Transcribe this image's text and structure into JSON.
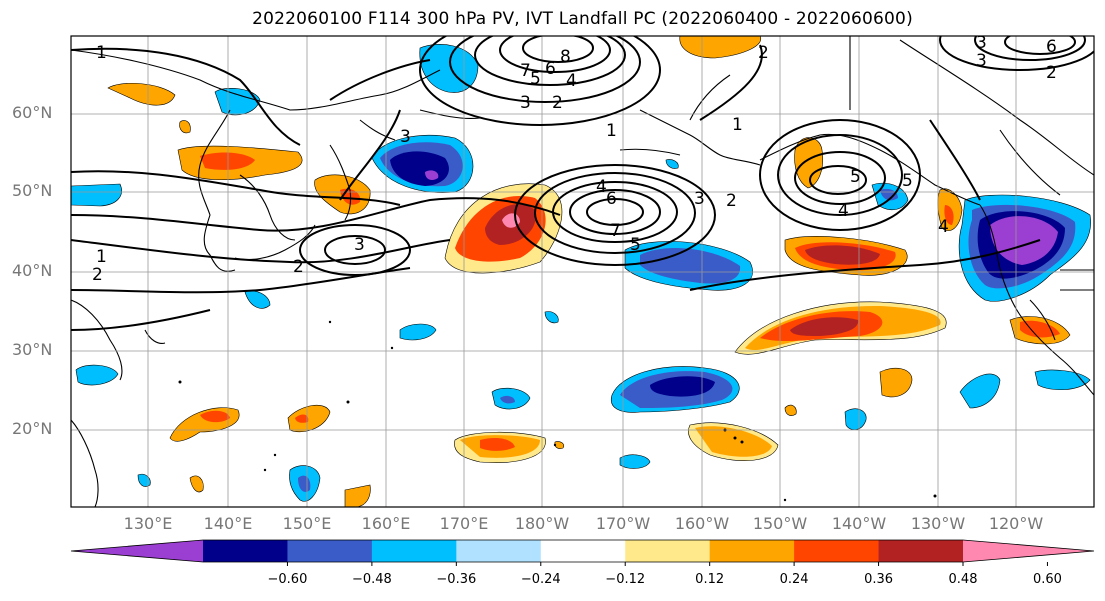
{
  "title": "2022060100 F114 300 hPa PV, IVT Landfall PC (2022060400 - 2022060600)",
  "lat_labels": [
    "60°N",
    "50°N",
    "40°N",
    "30°N",
    "20°N"
  ],
  "lon_labels": [
    "130°E",
    "140°E",
    "150°E",
    "160°E",
    "170°E",
    "180°W",
    "170°W",
    "160°W",
    "150°W",
    "140°W",
    "130°W",
    "120°W"
  ],
  "colorbar": {
    "colors": [
      "#9a3fd1",
      "#00008b",
      "#3a5cc9",
      "#00bfff",
      "#b0e2ff",
      "#ffffff",
      "#ffe98a",
      "#ffa500",
      "#ff4500",
      "#b22222",
      "#ff88b0"
    ],
    "tick_labels": [
      "−0.60",
      "−0.48",
      "−0.36",
      "−0.24",
      "−0.12",
      "0.12",
      "0.24",
      "0.36",
      "0.48",
      "0.60"
    ]
  },
  "contour_labels": [
    "1",
    "2",
    "3",
    "4",
    "5",
    "6",
    "7",
    "8",
    "1",
    "2",
    "3",
    "2",
    "3",
    "4",
    "5",
    "3",
    "2",
    "1",
    "4",
    "5",
    "6",
    "7",
    "3",
    "2",
    "1",
    "2",
    "3",
    "5",
    "6",
    "4"
  ]
}
